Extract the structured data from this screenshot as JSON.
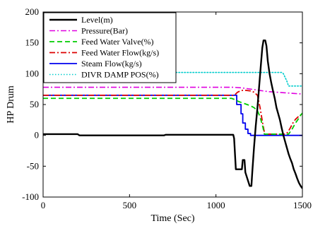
{
  "chart_data": {
    "type": "line",
    "title": "",
    "xlabel": "Time (Sec)",
    "ylabel": "HP Drum",
    "xlim": [
      0,
      1500
    ],
    "ylim": [
      -100,
      200
    ],
    "xticks": [
      0,
      500,
      1000,
      1500
    ],
    "yticks": [
      -100,
      -50,
      0,
      50,
      100,
      150,
      200
    ],
    "grid": false,
    "legend_position": "top-left",
    "series": [
      {
        "name": "Level(m)",
        "color": "#000000",
        "dash": "solid",
        "width": 2.4,
        "x": [
          0,
          200,
          210,
          700,
          710,
          1100,
          1105,
          1115,
          1120,
          1150,
          1155,
          1165,
          1170,
          1195,
          1205,
          1210,
          1220,
          1230,
          1240,
          1250,
          1260,
          1268,
          1275,
          1285,
          1292,
          1300,
          1310,
          1320,
          1330,
          1340,
          1350,
          1360,
          1370,
          1380,
          1390,
          1400,
          1410,
          1420,
          1430,
          1440,
          1450,
          1460,
          1470,
          1480,
          1490,
          1500
        ],
        "y": [
          2,
          2,
          0,
          0,
          1,
          1,
          -5,
          -55,
          -55,
          -55,
          -40,
          -40,
          -60,
          -82,
          -82,
          -60,
          -20,
          15,
          45,
          80,
          115,
          142,
          154,
          154,
          145,
          120,
          100,
          85,
          72,
          60,
          45,
          35,
          25,
          12,
          0,
          -10,
          -20,
          -30,
          -38,
          -45,
          -55,
          -62,
          -70,
          -77,
          -82,
          -86
        ]
      },
      {
        "name": "Pressure(Bar)",
        "color": "#e000e0",
        "dash": "dashdot",
        "width": 1.6,
        "x": [
          0,
          1100,
          1150,
          1200,
          1250,
          1300,
          1350,
          1400,
          1450,
          1500
        ],
        "y": [
          78,
          78,
          77,
          75,
          73,
          71,
          70,
          69,
          68,
          67
        ]
      },
      {
        "name": "Feed Water Valve(%)",
        "color": "#00cc00",
        "dash": "dashed",
        "width": 1.8,
        "x": [
          0,
          1090,
          1110,
          1130,
          1160,
          1200,
          1220,
          1240,
          1255,
          1270,
          1280,
          1400,
          1420,
          1440,
          1460,
          1480,
          1490,
          1500
        ],
        "y": [
          60,
          60,
          58,
          55,
          52,
          48,
          45,
          40,
          30,
          15,
          2,
          2,
          2,
          10,
          20,
          28,
          33,
          36
        ]
      },
      {
        "name": "Feed Water Flow(kg/s)",
        "color": "#dd0000",
        "dash": "dashdot",
        "width": 1.8,
        "x": [
          0,
          1100,
          1110,
          1125,
          1140,
          1155,
          1170,
          1200,
          1220,
          1240,
          1255,
          1270,
          1282,
          1400,
          1415,
          1430,
          1445,
          1460,
          1475,
          1490,
          1500
        ],
        "y": [
          65,
          65,
          66,
          70,
          72,
          73,
          73,
          72,
          70,
          65,
          45,
          20,
          2,
          2,
          5,
          12,
          20,
          26,
          30,
          33,
          35
        ]
      },
      {
        "name": "Steam Flow(kg/s)",
        "color": "#0000ee",
        "dash": "solid",
        "width": 1.8,
        "x": [
          0,
          1100,
          1120,
          1120,
          1145,
          1145,
          1155,
          1155,
          1170,
          1170,
          1185,
          1185,
          1200,
          1200,
          1500
        ],
        "y": [
          65,
          65,
          65,
          50,
          50,
          35,
          35,
          20,
          20,
          10,
          10,
          3,
          3,
          0,
          0
        ]
      },
      {
        "name": "DIVR DAMP POS(%)",
        "color": "#00cccc",
        "dash": "dotted",
        "width": 1.6,
        "x": [
          0,
          1380,
          1390,
          1410,
          1420,
          1500
        ],
        "y": [
          102,
          102,
          100,
          88,
          80,
          80
        ]
      }
    ]
  }
}
